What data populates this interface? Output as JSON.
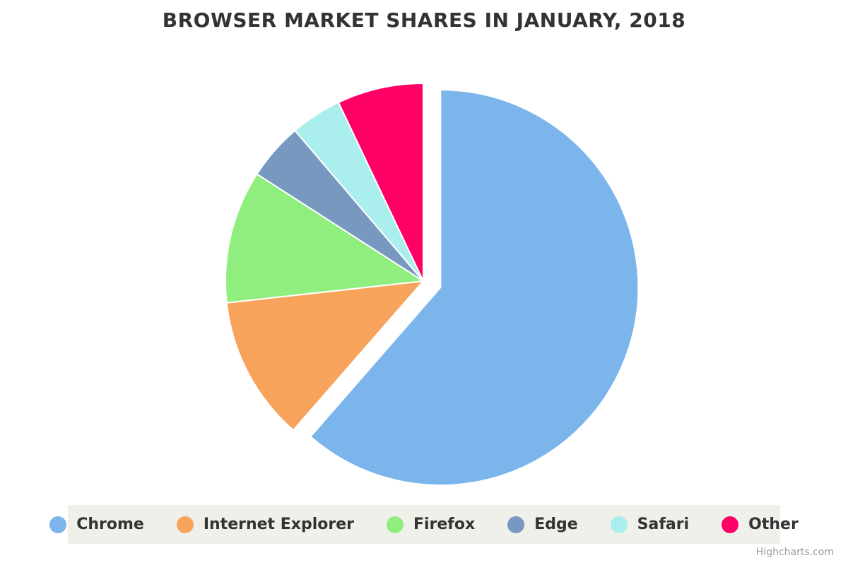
{
  "chart_data": {
    "type": "pie",
    "title": "BROWSER MARKET SHARES IN JANUARY, 2018",
    "categories": [
      "Chrome",
      "Internet Explorer",
      "Firefox",
      "Edge",
      "Safari",
      "Other"
    ],
    "values": [
      61.41,
      11.84,
      10.85,
      4.67,
      4.18,
      7.05
    ],
    "colors": [
      "#7cb5ec",
      "#f7a35c",
      "#90ee7e",
      "#7798bf",
      "#aaeeee",
      "#ff0066"
    ],
    "sliced": "Chrome",
    "legend_placement": "bottom"
  },
  "credits": "Highcharts.com"
}
